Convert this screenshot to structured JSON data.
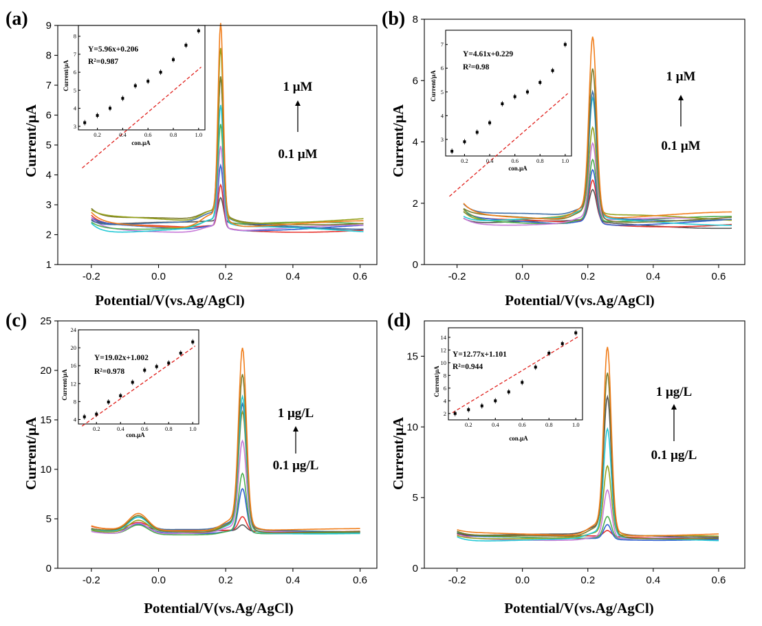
{
  "chart_data": [
    {
      "type": "line",
      "panel_label": "(a)",
      "xlabel": "Potential/V(vs.Ag/AgCl)",
      "ylabel": "Current/μA",
      "xlim": [
        -0.3,
        0.65
      ],
      "ylim": [
        1,
        9
      ],
      "x_ticks": [
        -0.2,
        0.0,
        0.2,
        0.4,
        0.6
      ],
      "y_ticks": [
        1,
        2,
        3,
        4,
        5,
        6,
        7,
        8,
        9
      ],
      "x_tick_labels": [
        "-0.2",
        "0.0",
        "0.2",
        "0.4",
        "0.6"
      ],
      "y_tick_labels": [
        "1",
        "2",
        "3",
        "4",
        "5",
        "6",
        "7",
        "8",
        "9"
      ],
      "x_range": [
        -0.2,
        0.61
      ],
      "peak_x": 0.185,
      "peak_width": 0.011,
      "conc_top": "1 μM",
      "conc_bottom": "0.1 μM",
      "series": [
        {
          "color": "#555555",
          "base": 2.3,
          "peak": 3.1
        },
        {
          "color": "#e8332d",
          "base": 2.2,
          "peak": 3.6
        },
        {
          "color": "#2f5fd0",
          "base": 2.25,
          "peak": 4.3
        },
        {
          "color": "#c77ad8",
          "base": 2.2,
          "peak": 4.9
        },
        {
          "color": "#4caf50",
          "base": 2.3,
          "peak": 5.5
        },
        {
          "color": "#23c9d6",
          "base": 2.15,
          "peak": 6.0
        },
        {
          "color": "#3d6fa8",
          "base": 2.3,
          "peak": 6.9
        },
        {
          "color": "#7b7b2a",
          "base": 2.45,
          "peak": 7.0
        },
        {
          "color": "#95a11c",
          "base": 2.5,
          "peak": 8.0
        },
        {
          "color": "#f07d1a",
          "base": 2.35,
          "peak": 8.8
        }
      ],
      "inset": {
        "equation": "Y=5.96x+0.206",
        "r2": "R²=0.987",
        "xlabel": "con.μA",
        "ylabel": "Current/μA",
        "xlim": [
          0.05,
          1.05
        ],
        "ylim": [
          2.8,
          8.6
        ],
        "x_ticks": [
          0.2,
          0.4,
          0.6,
          0.8,
          1.0
        ],
        "y_ticks": [
          3,
          4,
          5,
          6,
          7,
          8
        ],
        "x_tick_labels": [
          "0.2",
          "0.4",
          "0.6",
          "0.8",
          "1.0"
        ],
        "y_tick_labels": [
          "3",
          "4",
          "5",
          "6",
          "7",
          "8"
        ],
        "slope": 5.96,
        "intercept": 0.206,
        "points": [
          [
            0.1,
            3.2
          ],
          [
            0.2,
            3.6
          ],
          [
            0.3,
            4.0
          ],
          [
            0.4,
            4.55
          ],
          [
            0.5,
            5.25
          ],
          [
            0.6,
            5.5
          ],
          [
            0.7,
            6.0
          ],
          [
            0.8,
            6.7
          ],
          [
            0.9,
            7.5
          ],
          [
            1.0,
            8.3
          ]
        ]
      }
    },
    {
      "type": "line",
      "panel_label": "(b)",
      "xlabel": "Potential/V(vs.Ag/AgCl)",
      "ylabel": "Current/μA",
      "xlim": [
        -0.3,
        0.68
      ],
      "ylim": [
        0,
        8
      ],
      "x_ticks": [
        -0.2,
        0.0,
        0.2,
        0.4,
        0.6
      ],
      "y_ticks": [
        0,
        2,
        4,
        6,
        8
      ],
      "x_tick_labels": [
        "-0.2",
        "0.0",
        "0.2",
        "0.4",
        "0.6"
      ],
      "y_tick_labels": [
        "0",
        "2",
        "4",
        "6",
        "8"
      ],
      "x_range": [
        -0.18,
        0.64
      ],
      "peak_x": 0.215,
      "peak_width": 0.016,
      "conc_top": "1 μM",
      "conc_bottom": "0.1 μM",
      "series": [
        {
          "color": "#555555",
          "base": 1.3,
          "peak": 2.3
        },
        {
          "color": "#e8332d",
          "base": 1.35,
          "peak": 2.7
        },
        {
          "color": "#2f5fd0",
          "base": 1.4,
          "peak": 3.1
        },
        {
          "color": "#4caf50",
          "base": 1.45,
          "peak": 3.4
        },
        {
          "color": "#c77ad8",
          "base": 1.4,
          "peak": 3.8
        },
        {
          "color": "#95a11c",
          "base": 1.5,
          "peak": 4.2
        },
        {
          "color": "#23c9d6",
          "base": 1.4,
          "peak": 5.1
        },
        {
          "color": "#3d6fa8",
          "base": 1.55,
          "peak": 5.4
        },
        {
          "color": "#7b7b2a",
          "base": 1.5,
          "peak": 6.2
        },
        {
          "color": "#f07d1a",
          "base": 1.6,
          "peak": 7.2
        }
      ],
      "inset": {
        "equation": "Y=4.61x+0.229",
        "r2": "R²=0.98",
        "xlabel": "con.μA",
        "ylabel": "Current/μA",
        "xlim": [
          0.05,
          1.05
        ],
        "ylim": [
          2.3,
          7.6
        ],
        "x_ticks": [
          0.2,
          0.4,
          0.6,
          0.8,
          1.0
        ],
        "y_ticks": [
          3,
          4,
          5,
          6,
          7
        ],
        "x_tick_labels": [
          "0.2",
          "0.4",
          "0.6",
          "0.8",
          "1.0"
        ],
        "y_tick_labels": [
          "3",
          "4",
          "5",
          "6",
          "7"
        ],
        "slope": 4.61,
        "intercept": 0.229,
        "points": [
          [
            0.1,
            2.5
          ],
          [
            0.2,
            2.9
          ],
          [
            0.3,
            3.3
          ],
          [
            0.4,
            3.7
          ],
          [
            0.5,
            4.5
          ],
          [
            0.6,
            4.8
          ],
          [
            0.7,
            5.0
          ],
          [
            0.8,
            5.4
          ],
          [
            0.9,
            5.9
          ],
          [
            1.0,
            7.0
          ]
        ]
      }
    },
    {
      "type": "line",
      "panel_label": "(c)",
      "xlabel": "Potential/V(vs.Ag/AgCl)",
      "ylabel": "Current/μA",
      "xlim": [
        -0.3,
        0.65
      ],
      "ylim": [
        0,
        25
      ],
      "x_ticks": [
        -0.2,
        0.0,
        0.2,
        0.4,
        0.6
      ],
      "y_ticks": [
        0,
        5,
        10,
        15,
        20,
        25
      ],
      "x_tick_labels": [
        "-0.2",
        "0.0",
        "0.2",
        "0.4",
        "0.6"
      ],
      "y_tick_labels": [
        "0",
        "5",
        "10",
        "15",
        "20",
        "25"
      ],
      "x_range": [
        -0.2,
        0.6
      ],
      "peak_x": 0.25,
      "peak_width": 0.016,
      "conc_top": "1 μg/L",
      "conc_bottom": "0.1 μg/L",
      "series": [
        {
          "color": "#555555",
          "base": 3.7,
          "peak": 4.3
        },
        {
          "color": "#e8332d",
          "base": 3.8,
          "peak": 5.2
        },
        {
          "color": "#2f5fd0",
          "base": 3.6,
          "peak": 7.9
        },
        {
          "color": "#4caf50",
          "base": 3.5,
          "peak": 9.3
        },
        {
          "color": "#c77ad8",
          "base": 3.6,
          "peak": 12.3
        },
        {
          "color": "#95a11c",
          "base": 3.7,
          "peak": 15.0
        },
        {
          "color": "#3d6fa8",
          "base": 3.8,
          "peak": 15.8
        },
        {
          "color": "#23c9d6",
          "base": 3.6,
          "peak": 16.6
        },
        {
          "color": "#7b7b2a",
          "base": 3.7,
          "peak": 18.8
        },
        {
          "color": "#f07d1a",
          "base": 3.9,
          "peak": 21.3
        }
      ],
      "inset": {
        "equation": "Y=19.02x+1.002",
        "r2": "R²=0.978",
        "xlabel": "con.μA",
        "ylabel": "Current/μA",
        "xlim": [
          0.05,
          1.05
        ],
        "ylim": [
          3,
          24
        ],
        "x_ticks": [
          0.2,
          0.4,
          0.6,
          0.8,
          1.0
        ],
        "y_ticks": [
          4,
          8,
          12,
          16,
          20,
          24
        ],
        "x_tick_labels": [
          "0.2",
          "0.4",
          "0.6",
          "0.8",
          "1.0"
        ],
        "y_tick_labels": [
          "4",
          "8",
          "12",
          "16",
          "20",
          "24"
        ],
        "slope": 19.02,
        "intercept": 1.002,
        "points": [
          [
            0.1,
            4.6
          ],
          [
            0.2,
            5.2
          ],
          [
            0.3,
            7.9
          ],
          [
            0.4,
            9.3
          ],
          [
            0.5,
            12.3
          ],
          [
            0.6,
            15.0
          ],
          [
            0.7,
            15.8
          ],
          [
            0.8,
            16.6
          ],
          [
            0.9,
            18.8
          ],
          [
            1.0,
            21.3
          ]
        ]
      }
    },
    {
      "type": "line",
      "panel_label": "(d)",
      "xlabel": "Potential/V(vs.Ag/AgCl)",
      "ylabel": "Current/μA",
      "xlim": [
        -0.3,
        0.68
      ],
      "ylim": [
        0,
        17.5
      ],
      "x_ticks": [
        -0.2,
        0.0,
        0.2,
        0.4,
        0.6
      ],
      "y_ticks": [
        0,
        5,
        10,
        15
      ],
      "x_tick_labels": [
        "-0.2",
        "0.0",
        "0.2",
        "0.4",
        "0.6"
      ],
      "y_tick_labels": [
        "0",
        "5",
        "10",
        "15"
      ],
      "x_range": [
        -0.2,
        0.6
      ],
      "peak_x": 0.26,
      "peak_width": 0.016,
      "conc_top": "1 μg/L",
      "conc_bottom": "0.1 μg/L",
      "series": [
        {
          "color": "#e8332d",
          "base": 2.2,
          "peak": 2.6
        },
        {
          "color": "#2f5fd0",
          "base": 2.1,
          "peak": 3.1
        },
        {
          "color": "#4caf50",
          "base": 2.2,
          "peak": 3.7
        },
        {
          "color": "#c77ad8",
          "base": 2.1,
          "peak": 5.4
        },
        {
          "color": "#95a11c",
          "base": 2.2,
          "peak": 6.9
        },
        {
          "color": "#23c9d6",
          "base": 2.0,
          "peak": 9.3
        },
        {
          "color": "#555555",
          "base": 2.3,
          "peak": 11.5
        },
        {
          "color": "#7b7b2a",
          "base": 2.2,
          "peak": 13.2
        },
        {
          "color": "#f07d1a",
          "base": 2.4,
          "peak": 15.0
        }
      ],
      "inset": {
        "equation": "Y=12.77x+1.101",
        "r2": "R²=0.944",
        "xlabel": "con.μA",
        "ylabel": "Current/μA",
        "xlim": [
          0.05,
          1.05
        ],
        "ylim": [
          1,
          15.5
        ],
        "x_ticks": [
          0.2,
          0.4,
          0.6,
          0.8,
          1.0
        ],
        "y_ticks": [
          2,
          4,
          6,
          8,
          10,
          12,
          14
        ],
        "x_tick_labels": [
          "0.2",
          "0.4",
          "0.6",
          "0.8",
          "1.0"
        ],
        "y_tick_labels": [
          "2",
          "4",
          "6",
          "8",
          "10",
          "12",
          "14"
        ],
        "slope": 12.77,
        "intercept": 1.101,
        "points": [
          [
            0.1,
            2.0
          ],
          [
            0.2,
            2.6
          ],
          [
            0.3,
            3.2
          ],
          [
            0.4,
            4.0
          ],
          [
            0.5,
            5.4
          ],
          [
            0.6,
            6.9
          ],
          [
            0.7,
            9.3
          ],
          [
            0.8,
            11.5
          ],
          [
            0.9,
            13.0
          ],
          [
            1.0,
            14.7
          ]
        ]
      }
    }
  ]
}
